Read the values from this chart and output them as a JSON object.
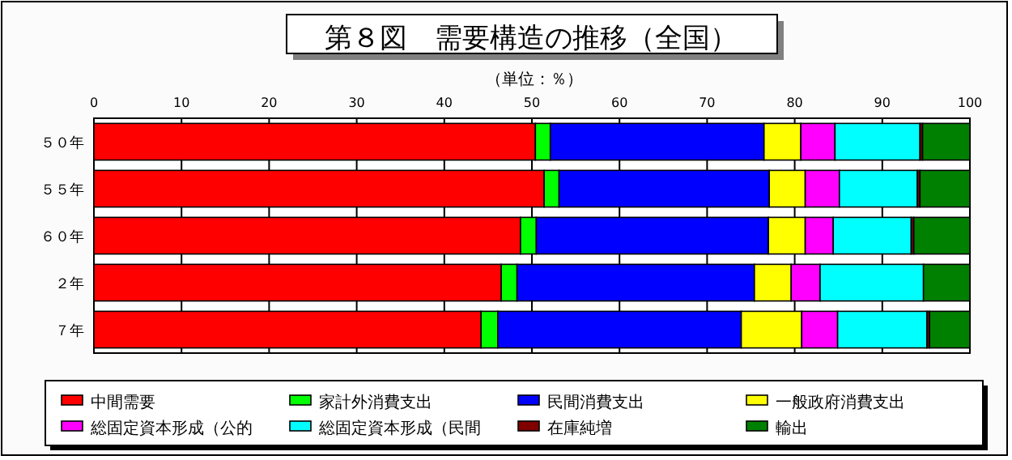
{
  "chart_data": {
    "type": "bar",
    "orientation": "horizontal",
    "stacked": true,
    "title": "第８図　需要構造の推移（全国）",
    "subtitle": "（単位：％）",
    "categories": [
      "５０年",
      "５５年",
      "６０年",
      "２年",
      "７年"
    ],
    "xlim": [
      0,
      100
    ],
    "xticks": [
      0,
      10,
      20,
      30,
      40,
      50,
      60,
      70,
      80,
      90,
      100
    ],
    "grid": "x",
    "legend": "bottom",
    "series": [
      {
        "name": "中間需要",
        "color": "#ff0000",
        "values": [
          50.4,
          51.4,
          48.7,
          46.5,
          44.2
        ]
      },
      {
        "name": "家計外消費支出",
        "color": "#00ff00",
        "values": [
          1.7,
          1.7,
          1.8,
          1.8,
          1.9
        ]
      },
      {
        "name": "民間消費支出",
        "color": "#0000ff",
        "values": [
          24.4,
          24.0,
          26.5,
          27.1,
          27.8
        ]
      },
      {
        "name": "一般政府消費支出",
        "color": "#ffff00",
        "values": [
          4.2,
          4.1,
          4.2,
          4.2,
          6.9
        ]
      },
      {
        "name": "総固定資本形成（公的",
        "color": "#ff00ff",
        "values": [
          3.9,
          3.9,
          3.2,
          3.3,
          4.1
        ]
      },
      {
        "name": "総固定資本形成（民間",
        "color": "#00ffff",
        "values": [
          9.7,
          8.9,
          8.9,
          11.8,
          10.2
        ]
      },
      {
        "name": "在庫純増",
        "color": "#800000",
        "values": [
          0.3,
          0.3,
          0.3,
          0,
          0.3
        ]
      },
      {
        "name": "輸出",
        "color": "#008000",
        "values": [
          5.4,
          5.7,
          6.4,
          5.3,
          4.6
        ]
      }
    ]
  }
}
